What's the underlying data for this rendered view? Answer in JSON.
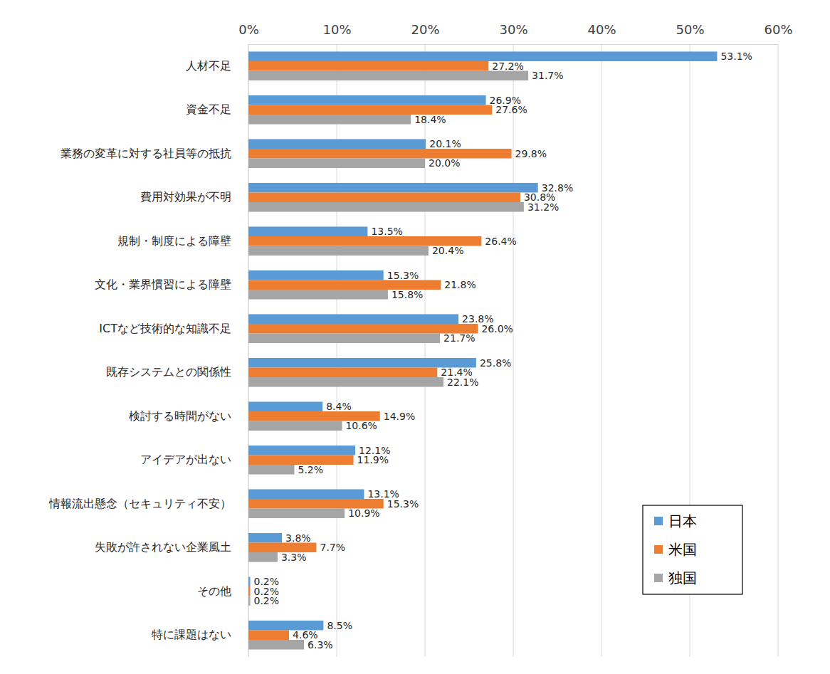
{
  "chart_data": {
    "type": "bar",
    "orientation": "horizontal",
    "categories": [
      "人材不足",
      "資金不足",
      "業務の変革に対する社員等の抵抗",
      "費用対効果が不明",
      "規制・制度による障壁",
      "文化・業界慣習による障壁",
      "ICTなど技術的な知識不足",
      "既存システムとの関係性",
      "検討する時間がない",
      "アイデアが出ない",
      "情報流出懸念（セキュリティ不安）",
      "失敗が許されない企業風土",
      "その他",
      "特に課題はない"
    ],
    "series": [
      {
        "name": "日本",
        "color": "#5b9bd5",
        "values": [
          53.1,
          26.9,
          20.1,
          32.8,
          13.5,
          15.3,
          23.8,
          25.8,
          8.4,
          12.1,
          13.1,
          3.8,
          0.2,
          8.5
        ],
        "value_labels": [
          "53.1%",
          "26.9%",
          "20.1%",
          "32.8%",
          "13.5%",
          "15.3%",
          "23.8%",
          "25.8%",
          "8.4%",
          "12.1%",
          "13.1%",
          "3.8%",
          "0.2%",
          "8.5%"
        ]
      },
      {
        "name": "米国",
        "color": "#ed7d31",
        "values": [
          27.2,
          27.6,
          29.8,
          30.8,
          26.4,
          21.8,
          26.0,
          21.4,
          14.9,
          11.9,
          15.3,
          7.7,
          0.2,
          4.6
        ],
        "value_labels": [
          "27.2%",
          "27.6%",
          "29.8%",
          "30.8%",
          "26.4%",
          "21.8%",
          "26.0%",
          "21.4%",
          "14.9%",
          "11.9%",
          "15.3%",
          "7.7%",
          "0.2%",
          "4.6%"
        ]
      },
      {
        "name": "独国",
        "color": "#a5a5a5",
        "values": [
          31.7,
          18.4,
          20.0,
          31.2,
          20.4,
          15.8,
          21.7,
          22.1,
          10.6,
          5.2,
          10.9,
          3.3,
          0.2,
          6.3
        ],
        "value_labels": [
          "31.7%",
          "18.4%",
          "20.0%",
          "31.2%",
          "20.4%",
          "15.8%",
          "21.7%",
          "22.1%",
          "10.6%",
          "5.2%",
          "10.9%",
          "3.3%",
          "0.2%",
          "6.3%"
        ]
      }
    ],
    "xlim": [
      0,
      60
    ],
    "xticks": [
      {
        "value": 0,
        "label": "0%"
      },
      {
        "value": 10,
        "label": "10%"
      },
      {
        "value": 20,
        "label": "20%"
      },
      {
        "value": 30,
        "label": "30%"
      },
      {
        "value": 40,
        "label": "40%"
      },
      {
        "value": 50,
        "label": "50%"
      },
      {
        "value": 60,
        "label": "60%"
      }
    ],
    "grid": true,
    "data_labels": true,
    "legend": "bottom-right"
  }
}
